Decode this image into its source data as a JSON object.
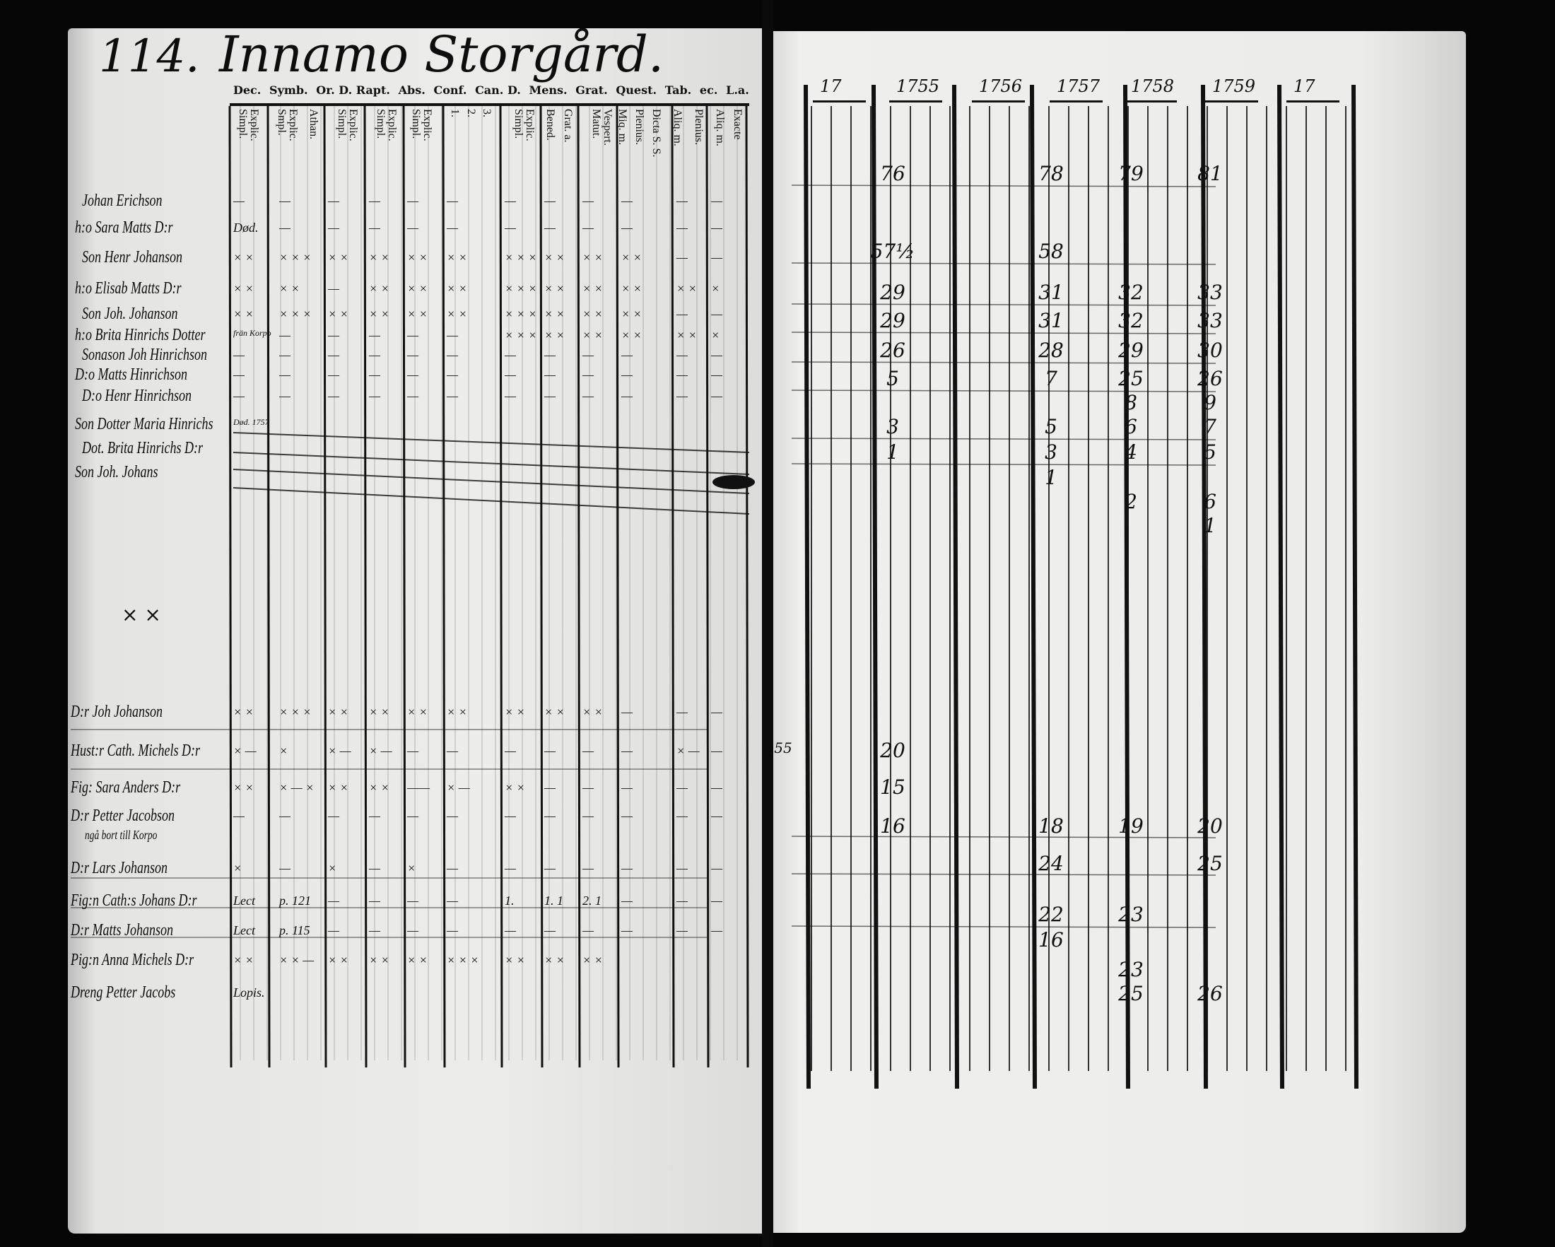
{
  "left_page": {
    "page_number": "114.",
    "title": "Innamo Storgård.",
    "column_groups": [
      "Dec.",
      "Symb.",
      "Or. D. Rapt.",
      "Abs.",
      "Conf.",
      "Can. D.",
      "Mens.",
      "Grat.",
      "Quest.",
      "Tab.",
      "ec.",
      "L.a."
    ],
    "column_subheaders": [
      "Explic.\nSimpl.",
      "Explic.\nSmpl.",
      "Athan.",
      "Explic.\nSimpl.",
      "Explic.\nSimpl.",
      "Explic.\nSimpl.",
      "1.",
      "2.",
      "3.",
      "Explic.\nSimpl.",
      "Bened.",
      "Grat. a.",
      "Vespert.\nMatut.",
      "Miq. m.",
      "Plenius.",
      "Dicta S. S.",
      "Aliq. m.",
      "Plenius.",
      "Aliq. m.",
      "Exacte"
    ],
    "persons_top": [
      "Johan Erichson",
      "h:o Sara Matts D:r",
      "Son Henr Johanson",
      "h:o Elisab Matts D:r",
      "Son Joh. Johanson",
      "h:o Brita Hinrichs Dotter",
      "Sonason Joh Hinrichson",
      "D:o Matts Hinrichson",
      "D:o Henr Hinrichson",
      "Son Dotter Maria Hinrichs",
      "Dot. Brita Hinrichs D:r",
      "Son Joh. Johans"
    ],
    "persons_bottom": [
      "D:r Joh Johanson",
      "Hust:r Cath. Michels D:r",
      "Fig: Sara Anders D:r",
      "D:r Petter Jacobson",
      "ngå bort till Korpo",
      "D:r Lars Johanson",
      "Fig:n Cath:s Johans D:r",
      "D:r Matts Johanson",
      "Pig:n Anna Michels D:r",
      "Dreng Petter Jacobs"
    ],
    "marks_top": [
      [
        "—",
        "—",
        "—",
        "—",
        "—",
        "—",
        "—",
        "—",
        "—",
        "—",
        "—",
        "—"
      ],
      [
        "Død.",
        "—",
        "—",
        "—",
        "—",
        "—",
        "—",
        "—",
        "—",
        "—",
        "—",
        "—"
      ],
      [
        "× ×",
        "× × ×",
        "× ×",
        "× ×",
        "× ×",
        "× ×",
        "× × ×",
        "× ×",
        "× ×",
        "× ×",
        "—",
        "—"
      ],
      [
        "× ×",
        "× ×",
        "—",
        "× ×",
        "× ×",
        "× ×",
        "× × ×",
        "× ×",
        "× ×",
        "× ×",
        "× ×",
        "×"
      ],
      [
        "× ×",
        "× × ×",
        "× ×",
        "× ×",
        "× ×",
        "× ×",
        "× × ×",
        "× ×",
        "× ×",
        "× ×",
        "—",
        "—"
      ],
      [
        "frän Korpo",
        "—",
        "—",
        "—",
        "—",
        "—",
        "× × ×",
        "× ×",
        "× ×",
        "× ×",
        "× ×",
        "×"
      ],
      [
        "—",
        "—",
        "—",
        "—",
        "—",
        "—",
        "—",
        "—",
        "—",
        "—",
        "—",
        "—"
      ],
      [
        "—",
        "—",
        "—",
        "—",
        "—",
        "—",
        "—",
        "—",
        "—",
        "—",
        "—",
        "—"
      ],
      [
        "—",
        "—",
        "—",
        "—",
        "—",
        "—",
        "—",
        "—",
        "—",
        "—",
        "—",
        "—"
      ],
      [
        "Død. 1757",
        "",
        "",
        "",
        "",
        "",
        "",
        "",
        "",
        "",
        "",
        ""
      ],
      [
        "",
        "",
        "",
        "",
        "",
        "",
        "",
        "",
        "",
        "",
        "",
        ""
      ],
      [
        "",
        "",
        "",
        "",
        "",
        "",
        "",
        "",
        "",
        "",
        "",
        ""
      ]
    ],
    "marks_bottom": [
      [
        "× ×",
        "× × ×",
        "× ×",
        "× ×",
        "× ×",
        "× ×",
        "× ×",
        "× ×",
        "× ×",
        "—",
        "—",
        "—"
      ],
      [
        "× —",
        "×",
        "× —",
        "× —",
        "—",
        "—",
        "—",
        "—",
        "—",
        "—",
        "× —",
        "—"
      ],
      [
        "× ×",
        "× — ×",
        "× ×",
        "× ×",
        "——",
        "× —",
        "× ×",
        "—",
        "—",
        "—",
        "—",
        "—"
      ],
      [
        "—",
        "—",
        "—",
        "—",
        "—",
        "—",
        "—",
        "—",
        "—",
        "—",
        "—",
        "—"
      ],
      [
        "",
        "",
        "",
        "",
        "",
        "",
        "",
        "",
        "",
        "",
        "",
        ""
      ],
      [
        "×",
        "—",
        "×",
        "—",
        "×",
        "—",
        "—",
        "—",
        "—",
        "—",
        "—",
        "—"
      ],
      [
        "Lect",
        "p. 121",
        "—",
        "—",
        "—",
        "—",
        "1.",
        "1. 1",
        "2. 1",
        "—",
        "—",
        "—"
      ],
      [
        "Lect",
        "p. 115",
        "—",
        "—",
        "—",
        "—",
        "—",
        "—",
        "—",
        "—",
        "—",
        "—"
      ],
      [
        "× ×",
        "× × —",
        "× ×",
        "× ×",
        "× ×",
        "× × ×",
        "× ×",
        "× ×",
        "× ×",
        "",
        "",
        ""
      ],
      [
        "Lopis.",
        "",
        "",
        "",
        "",
        "",
        "",
        "",
        "",
        "",
        "",
        ""
      ]
    ],
    "margin_mark": "× ×"
  },
  "right_page": {
    "year_headers": [
      "17",
      "1755",
      "1756",
      "1757",
      "1758",
      "1759",
      "17"
    ],
    "ages_top": [
      [
        null,
        "76",
        null,
        "78",
        "79",
        "81",
        null
      ],
      [
        null,
        "57½",
        null,
        "58",
        null,
        null,
        null
      ],
      [
        null,
        "29",
        null,
        "31",
        "32",
        "33",
        null
      ],
      [
        null,
        "29",
        null,
        "31",
        "32",
        "33",
        null
      ],
      [
        null,
        "26",
        null,
        "28",
        "29",
        "30",
        null
      ],
      [
        null,
        "5",
        null,
        "7",
        "25",
        "26",
        null
      ],
      [
        null,
        null,
        null,
        null,
        "8",
        "9",
        null
      ],
      [
        null,
        "3",
        null,
        "5",
        "6",
        "7",
        null
      ],
      [
        null,
        "1",
        null,
        "3",
        "4",
        "5",
        null
      ],
      [
        null,
        null,
        null,
        "1",
        null,
        null,
        null
      ],
      [
        null,
        null,
        null,
        null,
        "2",
        "6",
        null
      ],
      [
        null,
        null,
        null,
        null,
        null,
        "1",
        null
      ]
    ],
    "ages_bottom": [
      [
        "55",
        "20",
        null,
        null,
        null,
        null,
        null
      ],
      [
        null,
        "15",
        null,
        null,
        null,
        null,
        null
      ],
      [
        null,
        "16",
        null,
        "18",
        "19",
        "20",
        null
      ],
      [
        null,
        null,
        null,
        "24",
        null,
        "25",
        null
      ],
      [
        null,
        null,
        null,
        "22",
        "23",
        null,
        null
      ],
      [
        null,
        null,
        null,
        "16",
        null,
        null,
        null
      ],
      [
        null,
        null,
        null,
        null,
        "23",
        null,
        null
      ],
      [
        null,
        null,
        null,
        null,
        "25",
        "26",
        null
      ]
    ]
  },
  "colors": {
    "ink": "#111111",
    "paper": "#ececea",
    "background": "#060606"
  }
}
